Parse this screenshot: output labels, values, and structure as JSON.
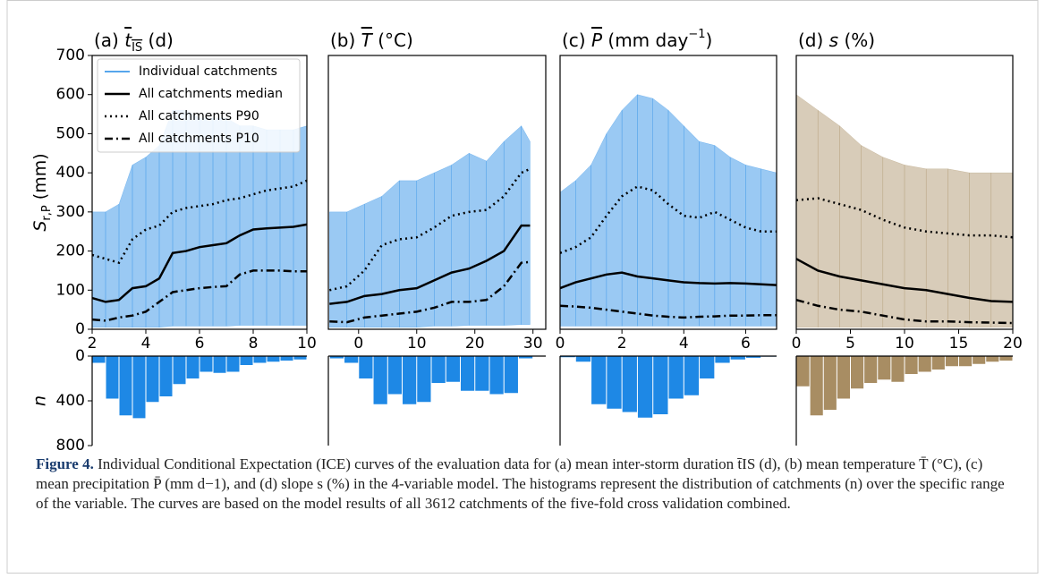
{
  "chart_data": [
    {
      "type": "line",
      "title": [
        {
          "text": "(a) "
        },
        {
          "text": "t",
          "italic": true,
          "over": true
        },
        {
          "text": "IS",
          "sub": true,
          "over": true
        },
        {
          "text": " (d)"
        }
      ],
      "ylabel": [
        {
          "text": "S",
          "italic": true
        },
        {
          "text": "r,P",
          "sub": true
        },
        {
          "text": " (mm)"
        }
      ],
      "legend": "upper left",
      "x": [
        2,
        2.5,
        3,
        3.5,
        4,
        4.5,
        5,
        5.5,
        6,
        6.5,
        7,
        7.5,
        8,
        8.5,
        9,
        9.5,
        10
      ],
      "xlim": [
        2,
        10
      ],
      "xticks": [
        2,
        4,
        6,
        8,
        10
      ],
      "ylim": [
        0,
        700
      ],
      "yticks": [
        0,
        100,
        200,
        300,
        400,
        500,
        600,
        700
      ],
      "series": [
        {
          "name": "Individual catchments",
          "type": "band",
          "color": "#1e88e5",
          "values": [
            300,
            300,
            320,
            420,
            440,
            470,
            560,
            560,
            540,
            540,
            540,
            520,
            520,
            510,
            510,
            510,
            520
          ],
          "low": [
            5,
            5,
            5,
            5,
            5,
            5,
            8,
            8,
            8,
            8,
            8,
            10,
            10,
            10,
            10,
            10,
            10
          ]
        },
        {
          "name": "All catchments median",
          "dash": "solid",
          "color": "#000000",
          "values": [
            80,
            70,
            75,
            105,
            110,
            130,
            195,
            200,
            210,
            215,
            220,
            240,
            255,
            258,
            260,
            262,
            268
          ]
        },
        {
          "name": "All catchments P90",
          "dash": "dotted",
          "color": "#000000",
          "values": [
            190,
            180,
            170,
            230,
            255,
            265,
            300,
            310,
            315,
            320,
            330,
            335,
            345,
            355,
            360,
            365,
            380
          ]
        },
        {
          "name": "All catchments P10",
          "dash": "dashdot",
          "color": "#000000",
          "values": [
            25,
            22,
            30,
            35,
            45,
            70,
            95,
            100,
            105,
            108,
            110,
            140,
            150,
            150,
            150,
            148,
            148
          ]
        }
      ],
      "hist": {
        "type": "histogram",
        "color": "#1e88e5",
        "bins": [
          2,
          2.5,
          3,
          3.5,
          4,
          4.5,
          5,
          5.5,
          6,
          6.5,
          7,
          7.5,
          8,
          8.5,
          9,
          9.5,
          10
        ],
        "counts": [
          60,
          380,
          530,
          555,
          410,
          360,
          250,
          200,
          140,
          150,
          140,
          80,
          60,
          50,
          40,
          30
        ],
        "ylim": [
          0,
          800
        ],
        "inverted": true,
        "yticks": [
          0,
          400,
          800
        ],
        "ylabel": "n"
      }
    },
    {
      "type": "line",
      "title": [
        {
          "text": "(b) "
        },
        {
          "text": "T",
          "italic": true,
          "over": true
        },
        {
          "text": " (°C)"
        }
      ],
      "x": [
        -5,
        -2,
        1,
        4,
        7,
        10,
        13,
        16,
        19,
        22,
        25,
        28,
        29.5
      ],
      "xlim": [
        -5.2,
        32.2
      ],
      "xticks": [
        0,
        10,
        20,
        30
      ],
      "ylim": [
        0,
        700
      ],
      "series": [
        {
          "type": "band",
          "color": "#1e88e5",
          "values": [
            300,
            300,
            320,
            340,
            380,
            380,
            400,
            420,
            450,
            430,
            480,
            520,
            480
          ],
          "low": [
            5,
            5,
            5,
            5,
            5,
            5,
            8,
            8,
            10,
            10,
            10,
            12,
            12
          ]
        },
        {
          "dash": "solid",
          "color": "#000000",
          "values": [
            65,
            70,
            85,
            90,
            100,
            105,
            125,
            145,
            155,
            175,
            200,
            265,
            265
          ]
        },
        {
          "dash": "dotted",
          "color": "#000000",
          "values": [
            100,
            110,
            150,
            215,
            230,
            235,
            260,
            290,
            300,
            305,
            340,
            400,
            410
          ]
        },
        {
          "dash": "dashdot",
          "color": "#000000",
          "values": [
            20,
            18,
            30,
            35,
            40,
            45,
            55,
            70,
            70,
            75,
            110,
            170,
            172
          ]
        }
      ],
      "hist": {
        "type": "histogram",
        "color": "#1e88e5",
        "bins": [
          -5,
          -2.5,
          0,
          2.5,
          5,
          7.5,
          10,
          12.5,
          15,
          17.5,
          20,
          22.5,
          25,
          27.5,
          30
        ],
        "counts": [
          20,
          60,
          200,
          430,
          340,
          430,
          410,
          240,
          230,
          310,
          310,
          340,
          330,
          20
        ],
        "ylim": [
          0,
          800
        ],
        "inverted": true
      }
    },
    {
      "type": "line",
      "title": [
        {
          "text": "(c) "
        },
        {
          "text": "P",
          "italic": true,
          "over": true
        },
        {
          "text": " (mm day"
        },
        {
          "text": "−1",
          "sup": true
        },
        {
          "text": ")"
        }
      ],
      "x": [
        0,
        0.5,
        1,
        1.5,
        2,
        2.5,
        3,
        3.5,
        4,
        4.5,
        5,
        5.5,
        6,
        6.5,
        7
      ],
      "xlim": [
        0,
        7
      ],
      "xticks": [
        0,
        2,
        4,
        6
      ],
      "ylim": [
        0,
        700
      ],
      "series": [
        {
          "type": "band",
          "color": "#1e88e5",
          "values": [
            350,
            380,
            420,
            500,
            560,
            600,
            590,
            560,
            520,
            480,
            470,
            440,
            420,
            410,
            400
          ],
          "low": [
            8,
            8,
            8,
            8,
            8,
            8,
            8,
            8,
            8,
            8,
            8,
            8,
            8,
            8,
            8
          ]
        },
        {
          "dash": "solid",
          "color": "#000000",
          "values": [
            105,
            120,
            130,
            140,
            145,
            135,
            130,
            125,
            120,
            118,
            117,
            118,
            117,
            115,
            113
          ]
        },
        {
          "dash": "dotted",
          "color": "#000000",
          "values": [
            195,
            210,
            235,
            290,
            340,
            365,
            355,
            320,
            290,
            285,
            300,
            280,
            260,
            250,
            250
          ]
        },
        {
          "dash": "dashdot",
          "color": "#000000",
          "values": [
            60,
            58,
            55,
            50,
            45,
            40,
            35,
            32,
            30,
            32,
            33,
            35,
            35,
            36,
            36
          ]
        }
      ],
      "hist": {
        "type": "histogram",
        "color": "#1e88e5",
        "bins": [
          0,
          0.5,
          1,
          1.5,
          2,
          2.5,
          3,
          3.5,
          4,
          4.5,
          5,
          5.5,
          6,
          6.5,
          7
        ],
        "counts": [
          10,
          50,
          430,
          470,
          500,
          550,
          520,
          380,
          350,
          200,
          60,
          30,
          15,
          5
        ],
        "ylim": [
          0,
          800
        ],
        "inverted": true
      }
    },
    {
      "type": "line",
      "title": [
        {
          "text": "(d) "
        },
        {
          "text": "s",
          "italic": true
        },
        {
          "text": " (%)"
        }
      ],
      "x": [
        0,
        2,
        4,
        6,
        8,
        10,
        12,
        14,
        16,
        18,
        20
      ],
      "xlim": [
        0,
        20
      ],
      "xticks": [
        0,
        5,
        10,
        15,
        20
      ],
      "ylim": [
        0,
        700
      ],
      "series": [
        {
          "type": "band",
          "color": "#a88d63",
          "values": [
            600,
            560,
            520,
            470,
            440,
            420,
            410,
            410,
            400,
            400,
            400
          ],
          "low": [
            5,
            5,
            5,
            5,
            5,
            5,
            5,
            5,
            5,
            5,
            5
          ]
        },
        {
          "dash": "solid",
          "color": "#000000",
          "values": [
            180,
            150,
            135,
            125,
            115,
            105,
            100,
            90,
            80,
            72,
            70
          ]
        },
        {
          "dash": "dotted",
          "color": "#000000",
          "values": [
            330,
            335,
            320,
            305,
            280,
            260,
            250,
            245,
            240,
            240,
            235
          ]
        },
        {
          "dash": "dashdot",
          "color": "#000000",
          "values": [
            75,
            60,
            50,
            45,
            35,
            25,
            20,
            20,
            18,
            17,
            16
          ]
        }
      ],
      "hist": {
        "type": "histogram",
        "color": "#a88d63",
        "bins": [
          0,
          1.25,
          2.5,
          3.75,
          5,
          6.25,
          7.5,
          8.75,
          10,
          11.25,
          12.5,
          13.75,
          15,
          16.25,
          17.5,
          18.75,
          20
        ],
        "counts": [
          270,
          530,
          480,
          380,
          290,
          240,
          210,
          230,
          160,
          140,
          120,
          90,
          90,
          70,
          50,
          40
        ],
        "ylim": [
          0,
          800
        ],
        "inverted": true
      }
    }
  ],
  "caption": {
    "label": "Figure 4.",
    "text": "Individual Conditional Expectation (ICE) curves of the evaluation data for (a) mean inter-storm duration t̄IS (d), (b) mean temperature T̄ (°C), (c) mean precipitation P̄ (mm d−1), and (d) slope s (%) in the 4-variable model. The histograms represent the distribution of catchments (n) over the specific range of the variable. The curves are based on the model results of all 3612 catchments of the five-fold cross validation combined."
  }
}
